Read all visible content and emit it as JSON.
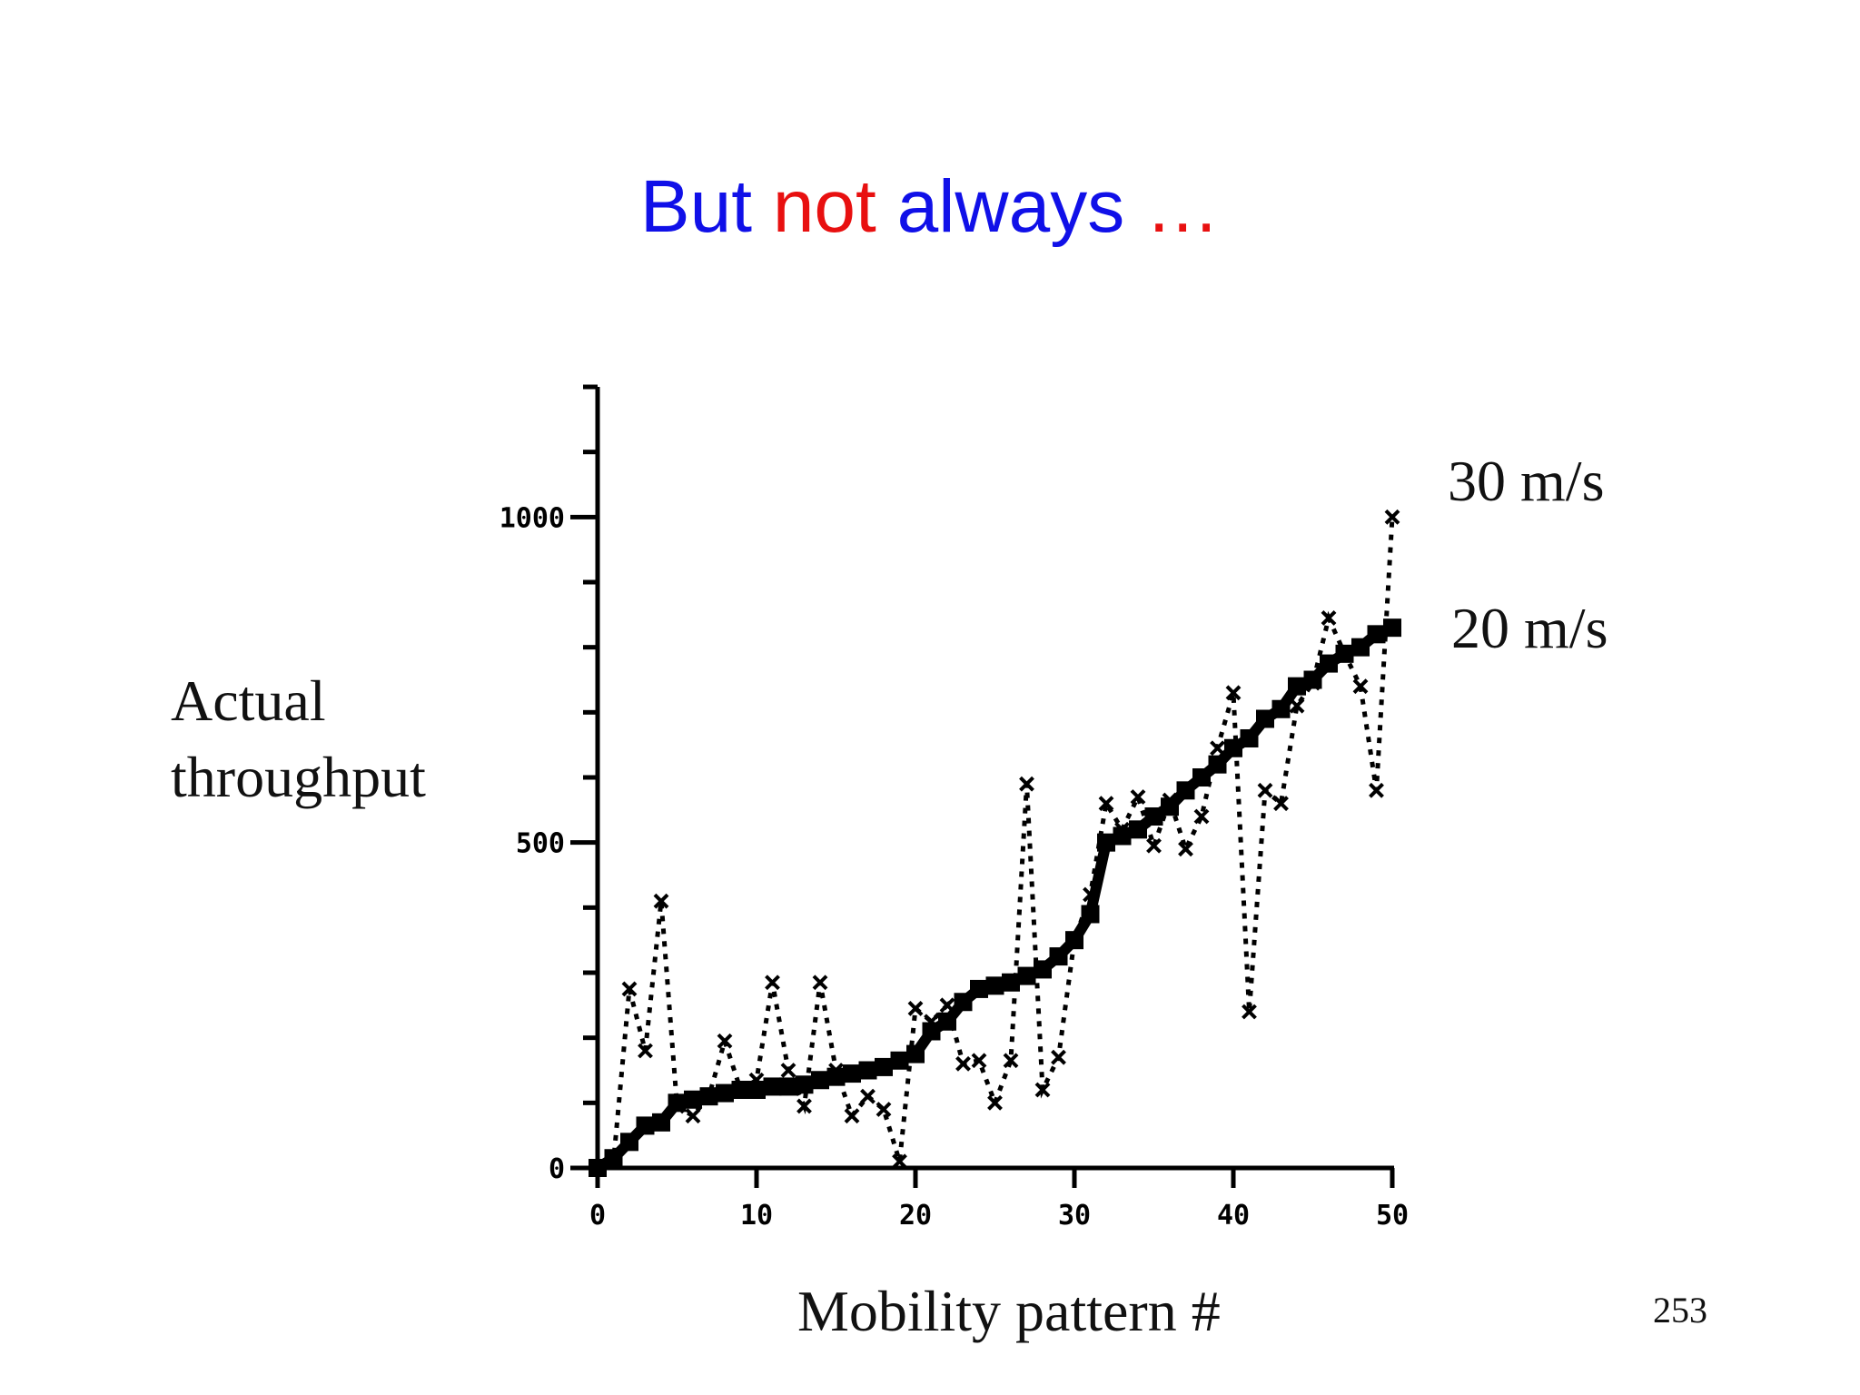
{
  "title": {
    "part1": "But",
    "part2": "not",
    "part3": "always",
    "ellipsis": "…"
  },
  "colors": {
    "title_blue": "#1010e8",
    "title_red": "#e81010",
    "ink": "#000000"
  },
  "slide_number": "253",
  "chart_data": {
    "type": "line",
    "xlabel": "Mobility pattern #",
    "ylabel": [
      "Actual",
      "throughput"
    ],
    "xlim": [
      0,
      50
    ],
    "ylim": [
      0,
      1200
    ],
    "x_ticks": [
      0,
      10,
      20,
      30,
      40,
      50
    ],
    "x_tick_labels": [
      "0",
      "10",
      "20",
      "30",
      "40",
      "50"
    ],
    "y_ticks": [
      0,
      500,
      1000
    ],
    "y_tick_labels": [
      "0",
      "500",
      "1000"
    ],
    "grid": false,
    "legend": "none",
    "series": [
      {
        "name": "20 m/s",
        "style": "solid-squares",
        "x": [
          0,
          1,
          2,
          3,
          4,
          5,
          6,
          7,
          8,
          9,
          10,
          11,
          12,
          13,
          14,
          15,
          16,
          17,
          18,
          19,
          20,
          21,
          22,
          23,
          24,
          25,
          26,
          27,
          28,
          29,
          30,
          31,
          32,
          33,
          34,
          35,
          36,
          37,
          38,
          39,
          40,
          41,
          42,
          43,
          44,
          45,
          46,
          47,
          48,
          49,
          50
        ],
        "y": [
          0,
          15,
          40,
          65,
          70,
          100,
          105,
          110,
          115,
          120,
          120,
          125,
          125,
          128,
          135,
          140,
          145,
          150,
          155,
          165,
          175,
          210,
          225,
          255,
          275,
          280,
          285,
          295,
          305,
          325,
          350,
          390,
          500,
          510,
          520,
          540,
          555,
          580,
          600,
          620,
          645,
          660,
          690,
          705,
          740,
          750,
          775,
          790,
          800,
          820,
          830
        ]
      },
      {
        "name": "30 m/s",
        "style": "dotted-crosses",
        "x": [
          0,
          1,
          2,
          3,
          4,
          5,
          6,
          7,
          8,
          9,
          10,
          11,
          12,
          13,
          14,
          15,
          16,
          17,
          18,
          19,
          20,
          21,
          22,
          23,
          24,
          25,
          26,
          27,
          28,
          29,
          30,
          31,
          32,
          33,
          34,
          35,
          36,
          37,
          38,
          39,
          40,
          41,
          42,
          43,
          44,
          45,
          46,
          47,
          48,
          49,
          50
        ],
        "y": [
          0,
          10,
          275,
          180,
          410,
          95,
          80,
          110,
          195,
          120,
          135,
          285,
          150,
          95,
          285,
          150,
          80,
          110,
          90,
          10,
          245,
          225,
          250,
          160,
          165,
          100,
          165,
          590,
          120,
          170,
          350,
          420,
          560,
          520,
          570,
          495,
          565,
          490,
          540,
          645,
          730,
          240,
          580,
          560,
          710,
          745,
          845,
          790,
          740,
          580,
          1000
        ]
      }
    ],
    "annotations": [
      "30 m/s",
      "20 m/s"
    ]
  }
}
